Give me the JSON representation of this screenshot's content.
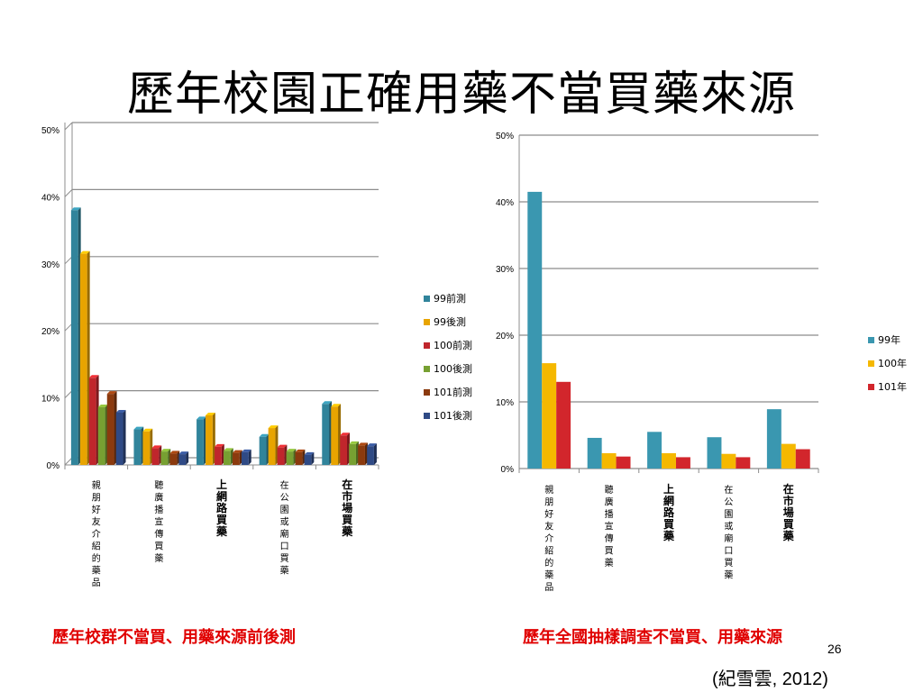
{
  "slide": {
    "title": "歷年校園正確用藥不當買藥來源",
    "caption_left": "歷年校群不當買、用藥來源前後測",
    "caption_right": "歷年全國抽樣調查不當買、用藥來源",
    "page_number": "26",
    "citation": "(紀雪雲, 2012)"
  },
  "chart_data": [
    {
      "type": "bar",
      "style": "3d",
      "categories": [
        "親朋好友介紹的藥品",
        "聽廣播宣傳買藥",
        "上網路買藥",
        "在公園或廟口買藥",
        "在市場買藥"
      ],
      "yticks": [
        "0%",
        "10%",
        "20%",
        "30%",
        "40%",
        "50%"
      ],
      "ylim": [
        0,
        50
      ],
      "grid": true,
      "legend": "right",
      "series": [
        {
          "name": "99前測",
          "color": "#31849B",
          "values": [
            38,
            5.3,
            6.8,
            4.2,
            9.1
          ]
        },
        {
          "name": "99後測",
          "color": "#E8A400",
          "values": [
            31.5,
            5.0,
            7.4,
            5.5,
            8.7
          ]
        },
        {
          "name": "100前測",
          "color": "#C0262C",
          "values": [
            13,
            2.5,
            2.7,
            2.6,
            4.4
          ]
        },
        {
          "name": "100後測",
          "color": "#77A032",
          "values": [
            8.6,
            2.0,
            2.1,
            2.0,
            3.1
          ]
        },
        {
          "name": "101前測",
          "color": "#8B3A0E",
          "values": [
            10.6,
            1.7,
            1.8,
            1.9,
            2.9
          ]
        },
        {
          "name": "101後測",
          "color": "#2F4A85",
          "values": [
            7.8,
            1.6,
            1.9,
            1.5,
            2.8
          ]
        }
      ]
    },
    {
      "type": "bar",
      "categories": [
        "親朋好友介紹的藥品",
        "聽廣播宣傳買藥",
        "上網路買藥",
        "在公園或廟口買藥",
        "在市場買藥"
      ],
      "yticks": [
        "0%",
        "10%",
        "20%",
        "30%",
        "40%",
        "50%"
      ],
      "ylim": [
        0,
        50
      ],
      "grid": true,
      "legend": "right",
      "series": [
        {
          "name": "99年",
          "color": "#3A97B0",
          "values": [
            41.5,
            4.6,
            5.5,
            4.7,
            8.9
          ]
        },
        {
          "name": "100年",
          "color": "#F5B800",
          "values": [
            15.8,
            2.3,
            2.3,
            2.2,
            3.7
          ]
        },
        {
          "name": "101年",
          "color": "#D2262C",
          "values": [
            13.0,
            1.8,
            1.7,
            1.7,
            2.9
          ]
        }
      ]
    }
  ]
}
